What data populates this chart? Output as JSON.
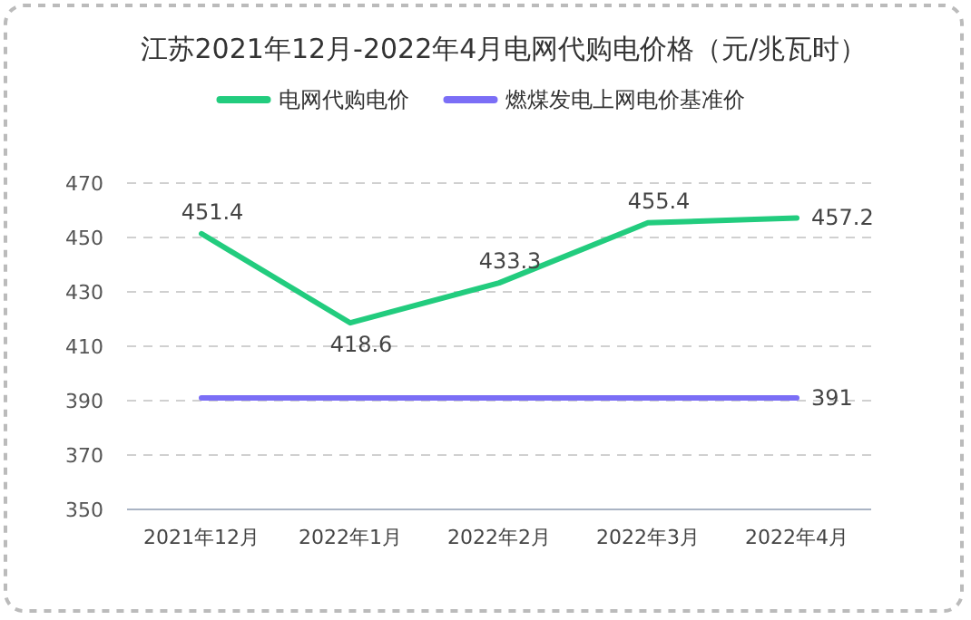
{
  "chart_data": {
    "type": "line",
    "title": "江苏2021年12月-2022年4月电网代购电价格（元/兆瓦时）",
    "categories": [
      "2021年12月",
      "2022年1月",
      "2022年2月",
      "2022年3月",
      "2022年4月"
    ],
    "series": [
      {
        "name": "电网代购电价",
        "color": "#22cc7e",
        "values": [
          451.4,
          418.6,
          433.3,
          455.4,
          457.2
        ],
        "value_labels": [
          "451.4",
          "418.6",
          "433.3",
          "455.4",
          "457.2"
        ]
      },
      {
        "name": "燃煤发电上网电价基准价",
        "color": "#7b6ef6",
        "values": [
          391,
          391,
          391,
          391,
          391
        ],
        "value_labels": [
          null,
          null,
          null,
          null,
          "391"
        ]
      }
    ],
    "ylim": [
      350,
      470
    ],
    "yticks": [
      350,
      370,
      390,
      410,
      430,
      450,
      470
    ],
    "grid": "y",
    "legend": "top"
  }
}
